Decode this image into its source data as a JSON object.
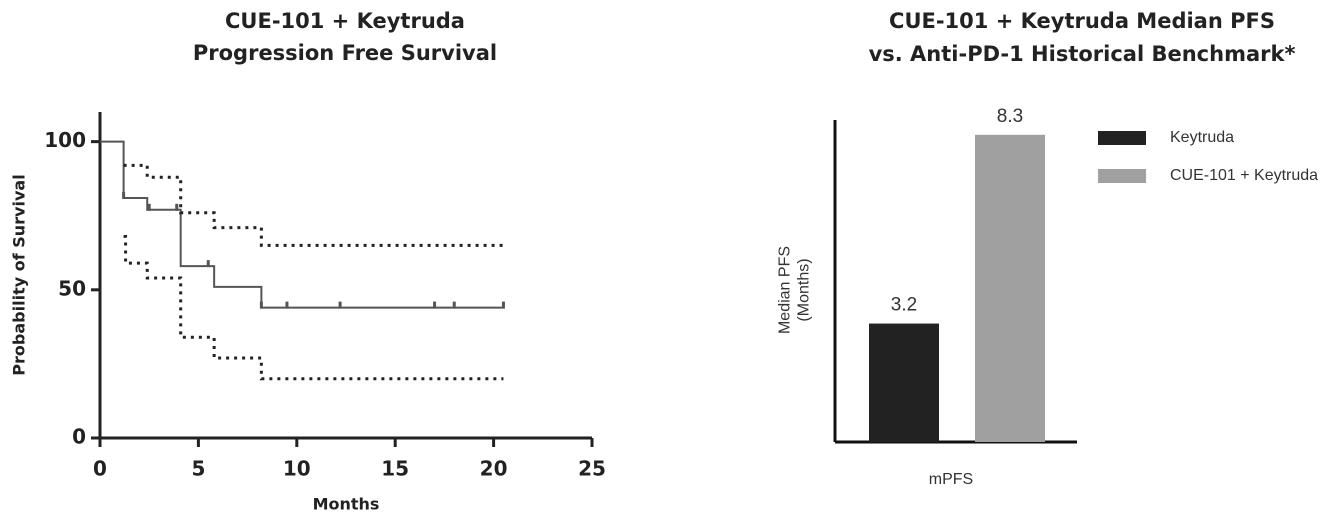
{
  "chart_data": [
    {
      "type": "line",
      "step": true,
      "title": [
        "CUE-101 + Keytruda",
        "Progression Free Survival"
      ],
      "xlabel": "Months",
      "ylabel": "Probability of Survival",
      "xlim": [
        0,
        25
      ],
      "xticks": [
        0,
        5,
        10,
        15,
        20,
        25
      ],
      "ylim": [
        0,
        110
      ],
      "yticks": [
        0,
        50,
        100
      ],
      "series": [
        {
          "x": [
            0,
            1.2,
            2.4,
            4.1,
            5.8,
            8.2,
            20.5
          ],
          "values": [
            100,
            81,
            77,
            58,
            51,
            44,
            44
          ],
          "color": "#555555",
          "style": "solid"
        },
        {
          "x": [
            1.2,
            2.4,
            4.1,
            5.8,
            8.2,
            20.5
          ],
          "values": [
            92,
            88,
            76,
            71,
            65,
            65
          ],
          "color": "#222222",
          "style": "dotted"
        },
        {
          "x": [
            1.2,
            1.3,
            2.4,
            4.1,
            5.8,
            8.2,
            20.5
          ],
          "values": [
            68,
            59,
            54,
            34,
            27,
            20,
            20
          ],
          "color": "#222222",
          "style": "dotted"
        }
      ],
      "censored": {
        "x": [
          1.2,
          2.5,
          3.9,
          5.5,
          8.2,
          9.5,
          12.2,
          17,
          18,
          20.5
        ],
        "values": [
          81,
          77,
          77,
          58,
          44,
          44,
          44,
          44,
          44,
          44
        ],
        "color": "#555555"
      }
    },
    {
      "type": "bar",
      "title": [
        "CUE-101 + Keytruda Median PFS",
        "vs. Anti-PD-1 Historical Benchmark*"
      ],
      "xlabel": "mPFS",
      "ylabel": [
        "Median PFS",
        "(Months)"
      ],
      "ylim": [
        0,
        8.7
      ],
      "legend": "right",
      "series": [
        {
          "name": "Keytruda",
          "color": "#222222",
          "values": [
            3.2
          ]
        },
        {
          "name": "CUE-101 + Keytruda",
          "color": "#a0a0a0",
          "values": [
            8.3
          ]
        }
      ]
    }
  ]
}
